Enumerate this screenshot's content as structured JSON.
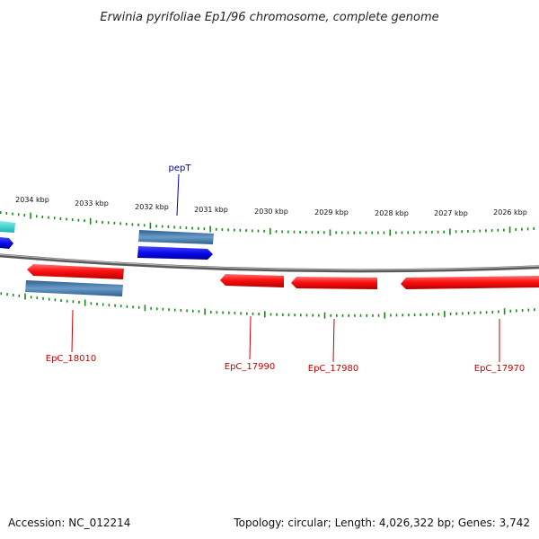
{
  "title": "Erwinia pyrifoliae Ep1/96 chromosome, complete genome",
  "footer": {
    "accession": "Accession: NC_012214",
    "summary": "Topology: circular; Length: 4,026,322 bp; Genes: 3,742"
  },
  "scale_labels": [
    "2034 kbp",
    "2033 kbp",
    "2032 kbp",
    "2031 kbp",
    "2030 kbp",
    "2029 kbp",
    "2028 kbp",
    "2027 kbp",
    "2026 kbp"
  ],
  "gene_labels": [
    {
      "text": "pepT",
      "color": "#0000aa"
    },
    {
      "text": "EpC_18010",
      "color": "#cc0000"
    },
    {
      "text": "EpC_17990",
      "color": "#cc0000"
    },
    {
      "text": "EpC_17980",
      "color": "#cc0000"
    },
    {
      "text": "EpC_17970",
      "color": "#cc0000"
    }
  ],
  "colors": {
    "gene_red": "#ff1a1a",
    "gene_blue": "#0a0aee",
    "gene_steelblue": "#4f86b8",
    "gene_cyan": "#22cccc",
    "tick_green": "#1a8a1a",
    "backbone_gray": "#777777"
  }
}
